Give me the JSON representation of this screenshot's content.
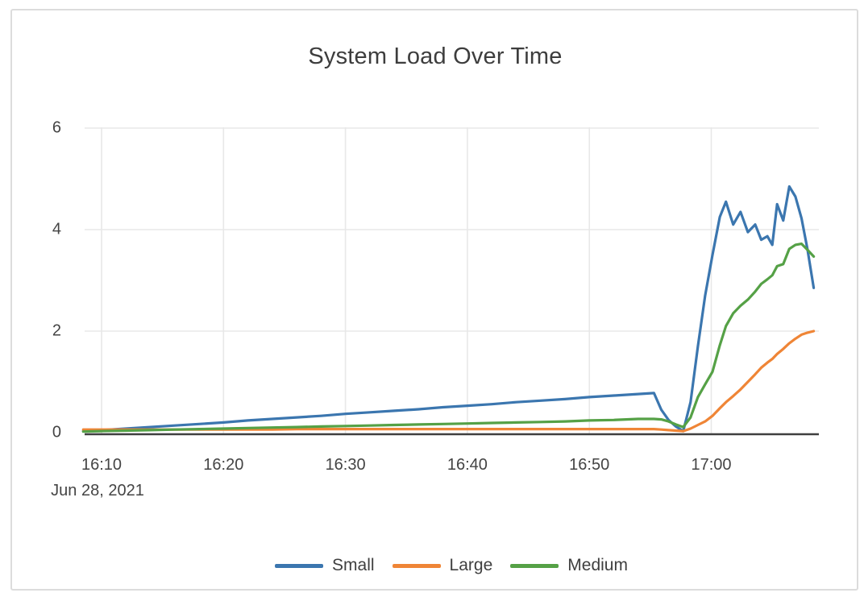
{
  "chart_data": {
    "type": "line",
    "title": "System Load Over Time",
    "x_encoding": "minutes after 16:00",
    "x": [
      8.5,
      10,
      12,
      14,
      16,
      18,
      20,
      22,
      24,
      26,
      28,
      30,
      32,
      34,
      36,
      38,
      40,
      42,
      44,
      46,
      48,
      50,
      52,
      54,
      55.3,
      55.9,
      56.5,
      57.1,
      57.7,
      58.3,
      58.9,
      59.5,
      60.1,
      60.7,
      61.2,
      61.8,
      62.4,
      63.0,
      63.6,
      64.1,
      64.6,
      65.0,
      65.4,
      65.9,
      66.4,
      66.9,
      67.4,
      67.9,
      68.4
    ],
    "series": [
      {
        "name": "Small",
        "color": "#3b76af",
        "values": [
          0.03,
          0.05,
          0.08,
          0.11,
          0.14,
          0.17,
          0.2,
          0.24,
          0.27,
          0.3,
          0.33,
          0.37,
          0.4,
          0.43,
          0.46,
          0.5,
          0.53,
          0.56,
          0.6,
          0.63,
          0.66,
          0.7,
          0.73,
          0.76,
          0.78,
          0.45,
          0.25,
          0.12,
          0.03,
          0.6,
          1.7,
          2.7,
          3.5,
          4.25,
          4.55,
          4.1,
          4.35,
          3.95,
          4.1,
          3.8,
          3.87,
          3.7,
          4.5,
          4.18,
          4.85,
          4.65,
          4.22,
          3.6,
          2.85
        ]
      },
      {
        "name": "Large",
        "color": "#ef8536",
        "values": [
          0.06,
          0.06,
          0.06,
          0.06,
          0.06,
          0.06,
          0.06,
          0.06,
          0.06,
          0.07,
          0.07,
          0.07,
          0.07,
          0.07,
          0.07,
          0.07,
          0.07,
          0.07,
          0.07,
          0.07,
          0.07,
          0.07,
          0.07,
          0.07,
          0.07,
          0.06,
          0.05,
          0.04,
          0.03,
          0.08,
          0.15,
          0.22,
          0.33,
          0.48,
          0.6,
          0.72,
          0.85,
          1.0,
          1.15,
          1.28,
          1.38,
          1.45,
          1.55,
          1.65,
          1.76,
          1.85,
          1.93,
          1.97,
          2.0
        ]
      },
      {
        "name": "Medium",
        "color": "#55a146",
        "values": [
          0.02,
          0.03,
          0.04,
          0.05,
          0.06,
          0.07,
          0.08,
          0.09,
          0.1,
          0.11,
          0.12,
          0.13,
          0.14,
          0.15,
          0.16,
          0.17,
          0.18,
          0.19,
          0.2,
          0.21,
          0.22,
          0.24,
          0.25,
          0.27,
          0.27,
          0.26,
          0.22,
          0.16,
          0.11,
          0.3,
          0.7,
          0.95,
          1.2,
          1.72,
          2.1,
          2.35,
          2.5,
          2.62,
          2.78,
          2.93,
          3.02,
          3.1,
          3.28,
          3.32,
          3.62,
          3.7,
          3.72,
          3.6,
          3.47
        ]
      }
    ],
    "xaxis": {
      "ticks": [
        {
          "t": 10,
          "label": "16:10",
          "sublabel": "Jun 28, 2021"
        },
        {
          "t": 20,
          "label": "16:20"
        },
        {
          "t": 30,
          "label": "16:30"
        },
        {
          "t": 40,
          "label": "16:40"
        },
        {
          "t": 50,
          "label": "16:50"
        },
        {
          "t": 60,
          "label": "17:00"
        }
      ]
    },
    "yaxis": {
      "ticks": [
        0,
        2,
        4,
        6
      ],
      "range": [
        0,
        6
      ]
    },
    "legend": {
      "position": "bottom-center",
      "entries": [
        "Small",
        "Large",
        "Medium"
      ]
    },
    "grid": true,
    "colors": {
      "grid": "#e8e8e8",
      "axis_line": "#3f3f3f",
      "text": "#444444",
      "frame_border": "#dcdcdc"
    }
  }
}
